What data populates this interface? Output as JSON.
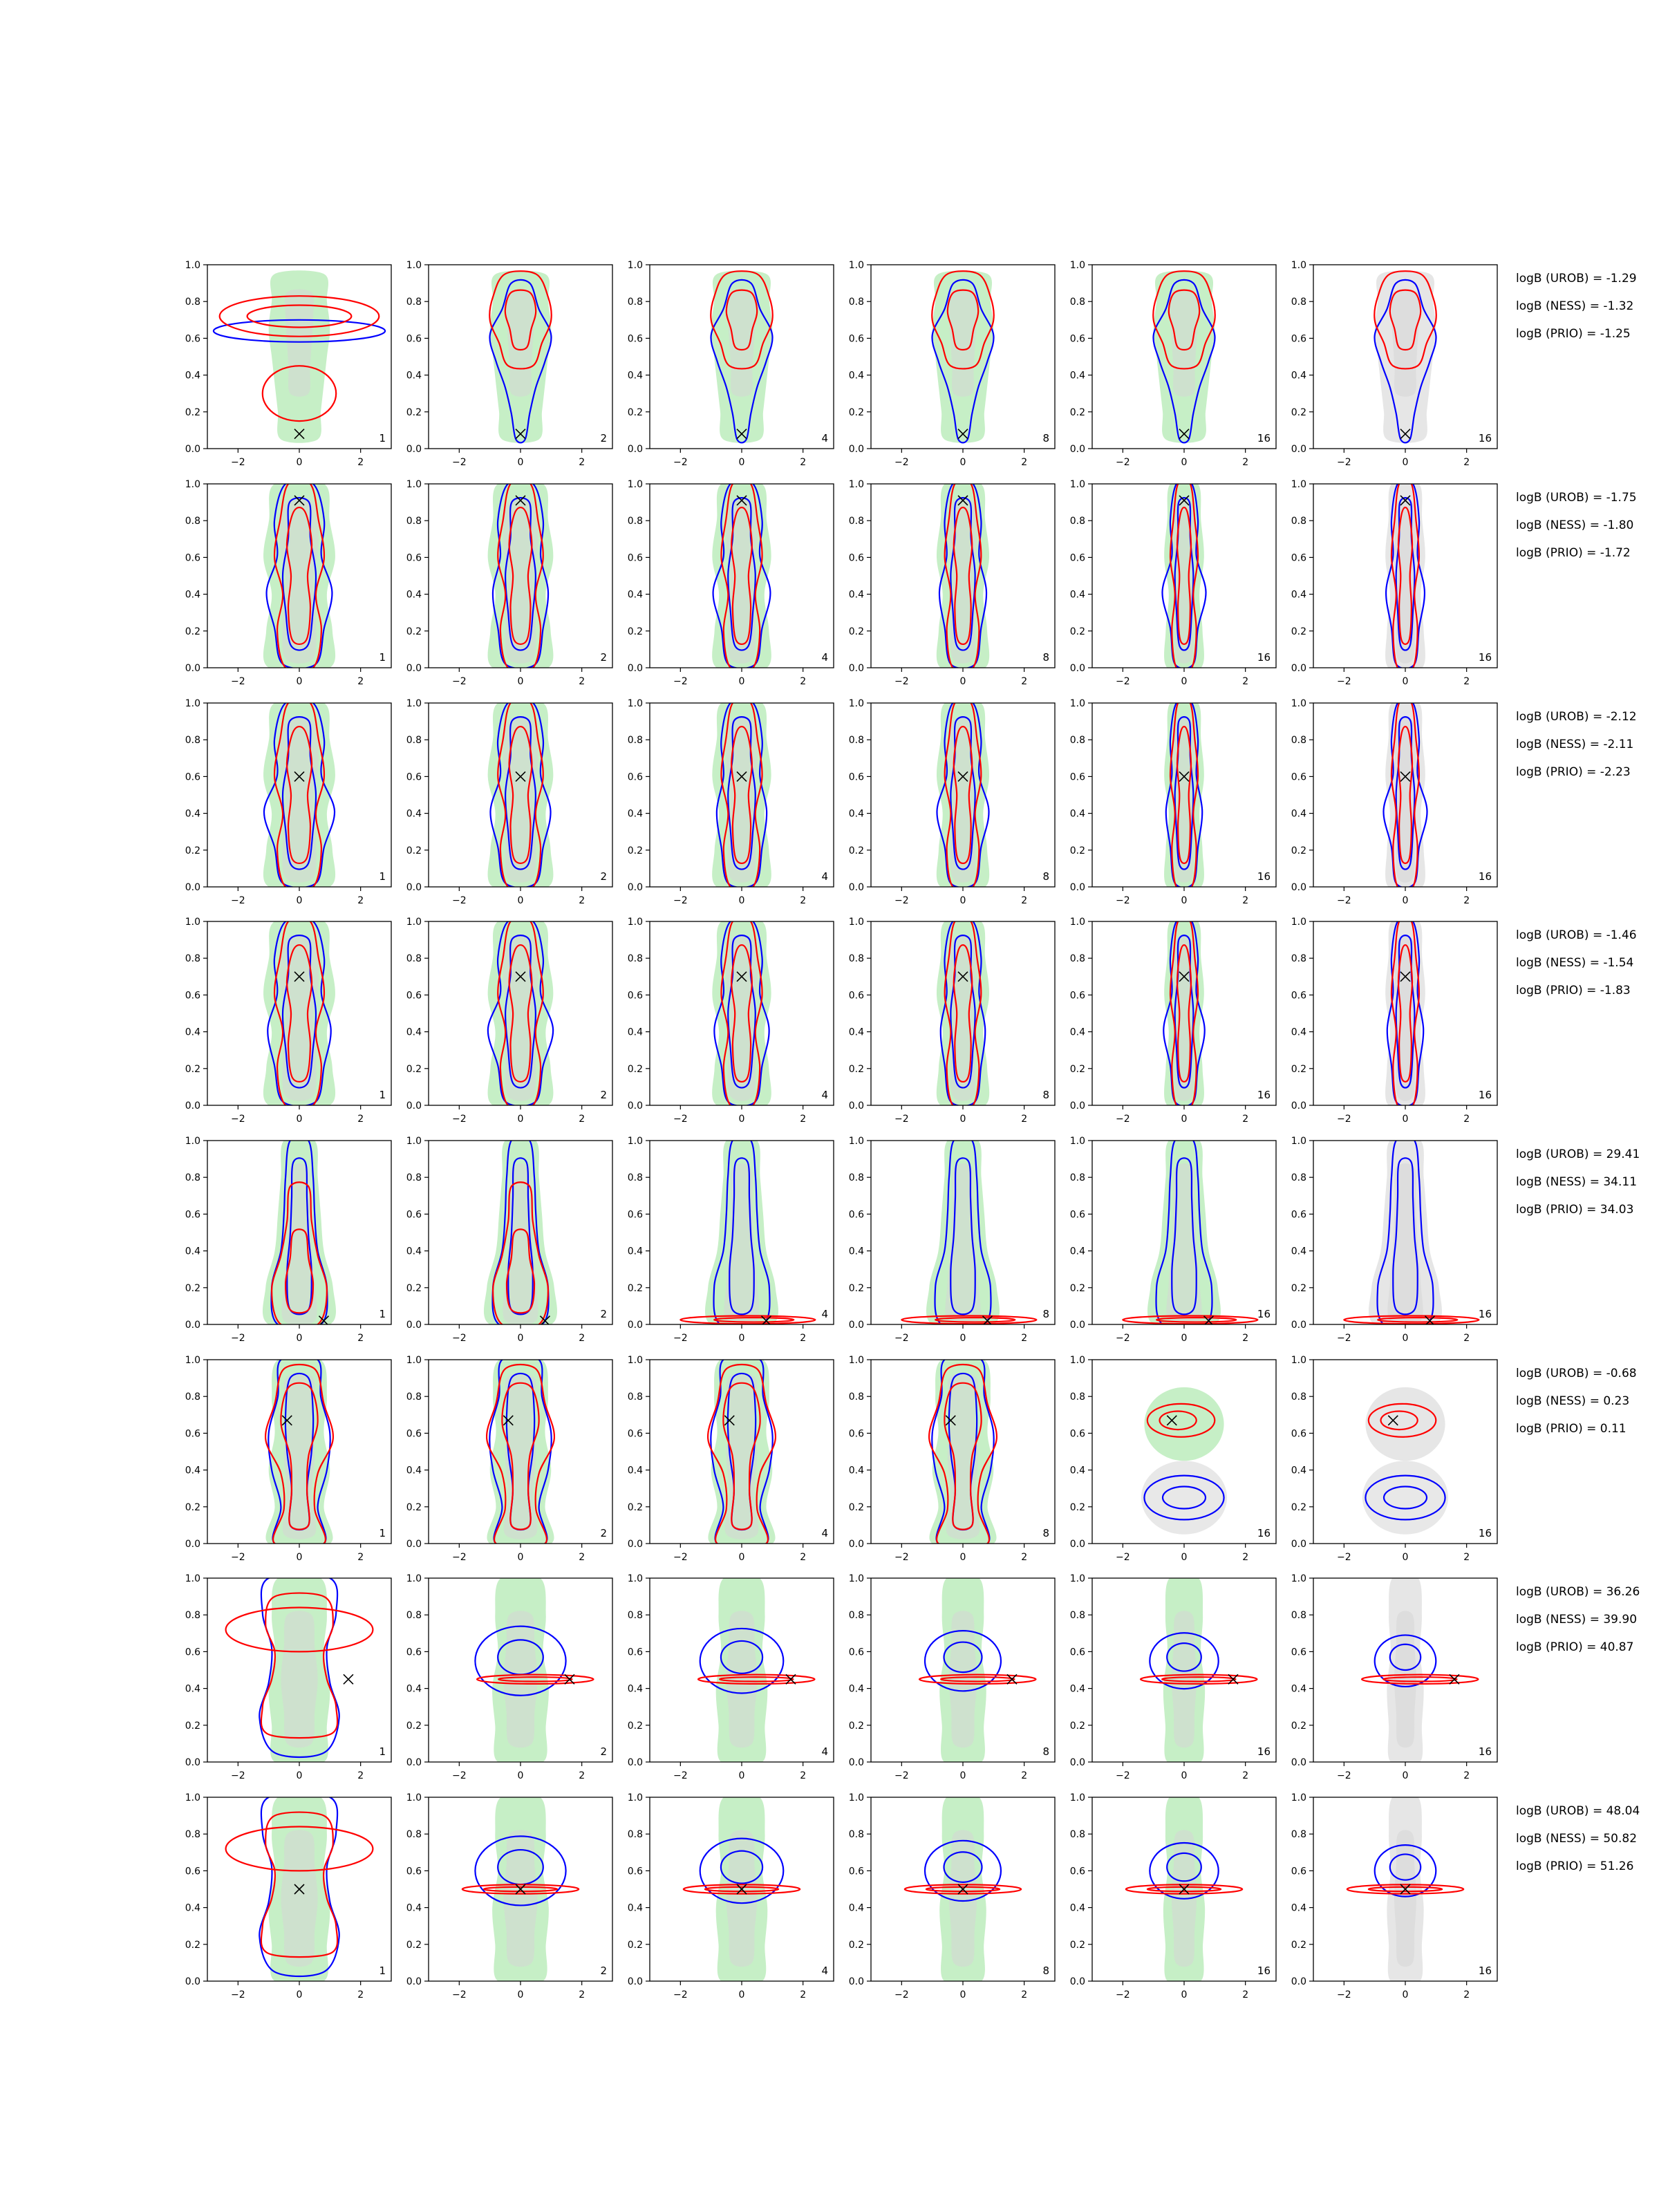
{
  "chart_data": {
    "type": "contour",
    "title": "",
    "xlabel": "",
    "ylabel": "",
    "xlim": [
      -3,
      3
    ],
    "ylim": [
      0,
      1
    ],
    "x_ticks": [
      "−2",
      "0",
      "2"
    ],
    "y_ticks": [
      "0.0",
      "0.2",
      "0.4",
      "0.6",
      "0.8",
      "1.0"
    ],
    "grid": false,
    "colors": {
      "fill_outer": "#c6efc6",
      "fill_inner": "#d6d6d6",
      "prior_fill": "#e6e6e6",
      "contour_a": "#0000ff",
      "contour_b": "#ff0000",
      "marker": "#000000"
    },
    "column_labels": [
      "1",
      "2",
      "4",
      "8",
      "16",
      "16"
    ],
    "rows": [
      {
        "truth": [
          0,
          0.08
        ],
        "logb": [
          "logB (UROB) = -1.29",
          "logB (NESS) = -1.32",
          "logB (PRIO) = -1.25"
        ],
        "style": "wide"
      },
      {
        "truth": [
          0,
          0.91
        ],
        "logb": [
          "logB (UROB) = -1.75",
          "logB (NESS) = -1.80",
          "logB (PRIO) = -1.72"
        ],
        "style": "tall"
      },
      {
        "truth": [
          0,
          0.6
        ],
        "logb": [
          "logB (UROB) = -2.12",
          "logB (NESS) = -2.11",
          "logB (PRIO) = -2.23"
        ],
        "style": "tall"
      },
      {
        "truth": [
          0,
          0.7
        ],
        "logb": [
          "logB (UROB) = -1.46",
          "logB (NESS) = -1.54",
          "logB (PRIO) = -1.83"
        ],
        "style": "tall"
      },
      {
        "truth": [
          0.8,
          0.02
        ],
        "logb": [
          "logB (UROB) = 29.41",
          "logB (NESS) = 34.11",
          "logB (PRIO) = 34.03"
        ],
        "style": "flat-low"
      },
      {
        "truth": [
          -0.4,
          0.67
        ],
        "logb": [
          "logB (UROB) = -0.68",
          "logB (NESS) = 0.23",
          "logB (PRIO) = 0.11"
        ],
        "style": "split"
      },
      {
        "truth": [
          1.6,
          0.45
        ],
        "logb": [
          "logB (UROB) = 36.26",
          "logB (NESS) = 39.90",
          "logB (PRIO) = 40.87"
        ],
        "style": "flat-mid"
      },
      {
        "truth": [
          0,
          0.5
        ],
        "logb": [
          "logB (UROB) = 48.04",
          "logB (NESS) = 50.82",
          "logB (PRIO) = 51.26"
        ],
        "style": "flat-mid"
      }
    ]
  }
}
